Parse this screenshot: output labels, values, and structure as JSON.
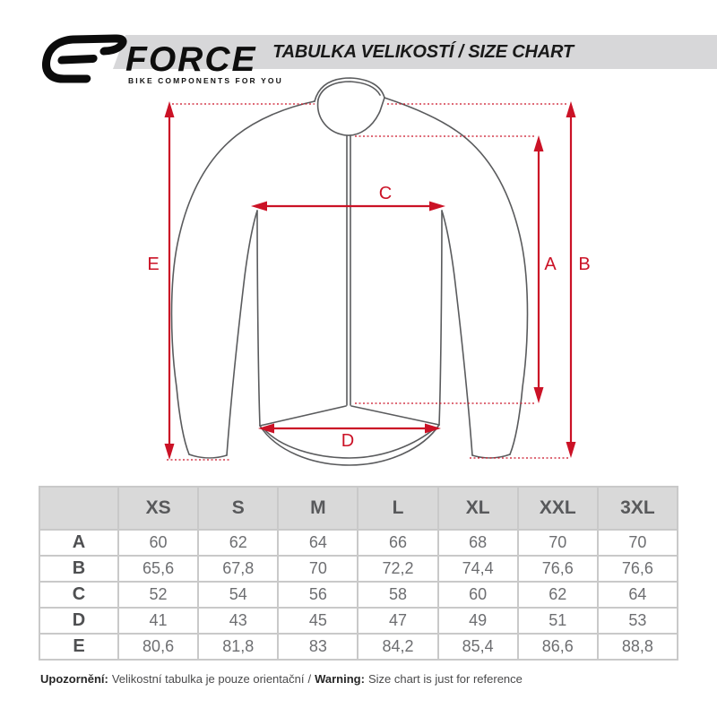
{
  "colors": {
    "accent_red": "#cb1226",
    "stripe_gray": "#d7d7d9",
    "jersey_outline": "#5a5b5d",
    "table_border": "#c9c9c9",
    "table_header_bg": "#d9d9d9",
    "table_text": "#6d6e71"
  },
  "header": {
    "title": "TABULKA VELIKOSTÍ / SIZE CHART",
    "brand": {
      "name": "FORCE",
      "tagline": "BIKE COMPONENTS FOR YOU"
    }
  },
  "diagram": {
    "measure_labels": {
      "a": "A",
      "b": "B",
      "c": "C",
      "d": "D",
      "e": "E"
    }
  },
  "size_table": {
    "corner_label": "",
    "sizes": [
      "XS",
      "S",
      "M",
      "L",
      "XL",
      "XXL",
      "3XL"
    ],
    "rows": [
      {
        "label": "A",
        "values": [
          "60",
          "62",
          "64",
          "66",
          "68",
          "70",
          "70"
        ]
      },
      {
        "label": "B",
        "values": [
          "65,6",
          "67,8",
          "70",
          "72,2",
          "74,4",
          "76,6",
          "76,6"
        ]
      },
      {
        "label": "C",
        "values": [
          "52",
          "54",
          "56",
          "58",
          "60",
          "62",
          "64"
        ]
      },
      {
        "label": "D",
        "values": [
          "41",
          "43",
          "45",
          "47",
          "49",
          "51",
          "53"
        ]
      },
      {
        "label": "E",
        "values": [
          "80,6",
          "81,8",
          "83",
          "84,2",
          "85,4",
          "86,6",
          "88,8"
        ]
      }
    ]
  },
  "footer": {
    "prefix_cs": "Upozornění:",
    "text_cs": "Velikostní tabulka je pouze orientační",
    "separator": "/",
    "prefix_en": "Warning:",
    "text_en": "Size chart is just for reference"
  }
}
